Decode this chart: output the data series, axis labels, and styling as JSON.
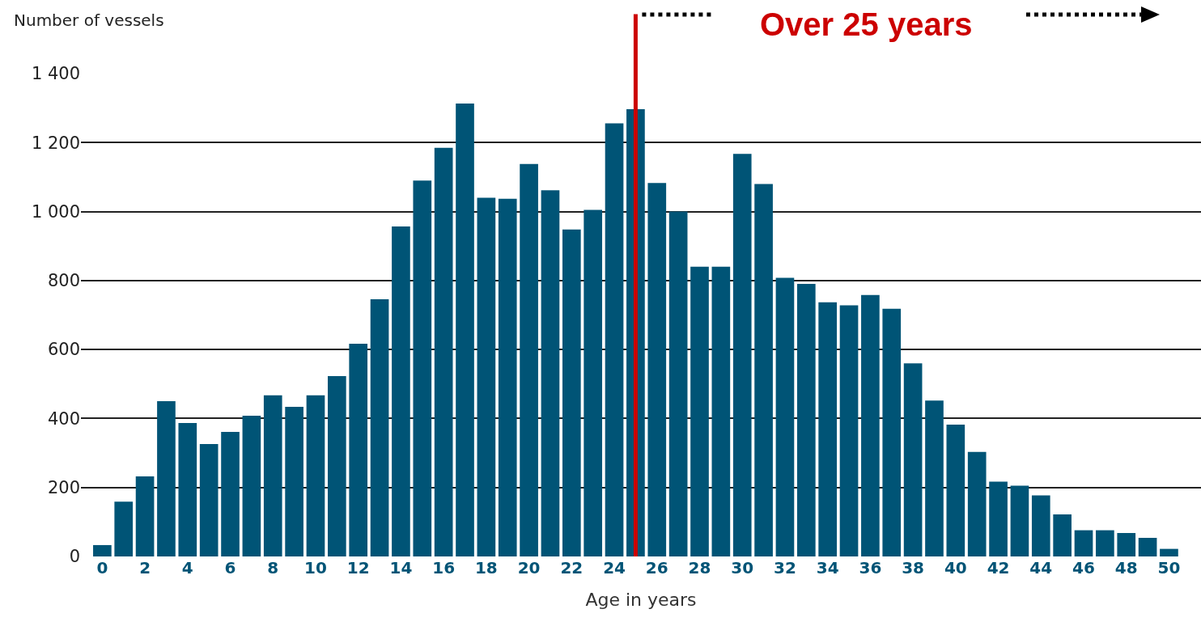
{
  "chart_data": {
    "type": "bar",
    "ylabel": "Number of vessels",
    "xlabel": "Age in years",
    "x": [
      0,
      1,
      2,
      3,
      4,
      5,
      6,
      7,
      8,
      9,
      10,
      11,
      12,
      13,
      14,
      15,
      16,
      17,
      18,
      19,
      20,
      21,
      22,
      23,
      24,
      25,
      26,
      27,
      28,
      29,
      30,
      31,
      32,
      33,
      34,
      35,
      36,
      37,
      38,
      39,
      40,
      41,
      42,
      43,
      44,
      45,
      46,
      47,
      48,
      49,
      50
    ],
    "values": [
      33,
      159,
      232,
      450,
      387,
      326,
      361,
      408,
      467,
      434,
      467,
      523,
      617,
      746,
      957,
      1090,
      1185,
      1313,
      1040,
      1037,
      1138,
      1062,
      948,
      1005,
      1256,
      1297,
      1083,
      1000,
      840,
      840,
      1167,
      1080,
      808,
      790,
      737,
      728,
      758,
      718,
      560,
      452,
      382,
      303,
      217,
      205,
      177,
      122,
      76,
      76,
      68,
      54,
      22
    ],
    "color": "#005476",
    "xlim": [
      -1,
      51.5
    ],
    "xticks": [
      0,
      2,
      4,
      6,
      8,
      10,
      12,
      14,
      16,
      18,
      20,
      22,
      24,
      26,
      28,
      30,
      32,
      34,
      36,
      38,
      40,
      42,
      44,
      46,
      48,
      50
    ],
    "ylim": [
      0,
      1400
    ],
    "yticks": [
      0,
      200,
      400,
      600,
      800,
      {
        "value": 1000,
        "label": "1 000"
      },
      {
        "value": 1200,
        "label": "1 200"
      },
      {
        "value": 1400,
        "label": "1 400"
      }
    ],
    "grid": "y",
    "legend": false,
    "ref_lines": [
      {
        "axis": "x",
        "value": 25,
        "color": "#cc0000"
      }
    ],
    "annotations": [
      "Over 25 years"
    ]
  }
}
